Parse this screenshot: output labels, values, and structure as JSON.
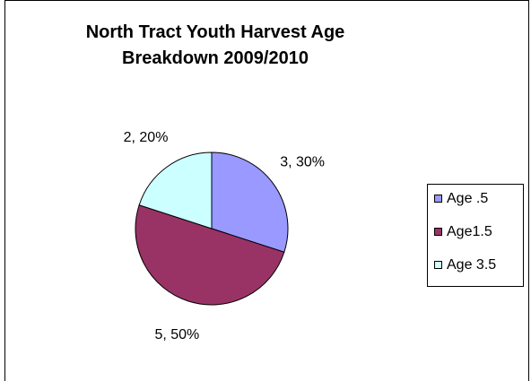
{
  "chart_data": {
    "type": "pie",
    "title": "North Tract Youth Harvest Age Breakdown 2009/2010",
    "categories": [
      "Age .5",
      "Age1.5",
      "Age 3.5"
    ],
    "values": [
      3,
      5,
      2
    ],
    "value_labels": [
      "3, 30%",
      "5, 50%",
      "2, 20%"
    ],
    "colors": [
      "#9999ff",
      "#993366",
      "#ccffff"
    ],
    "legend": "right"
  }
}
